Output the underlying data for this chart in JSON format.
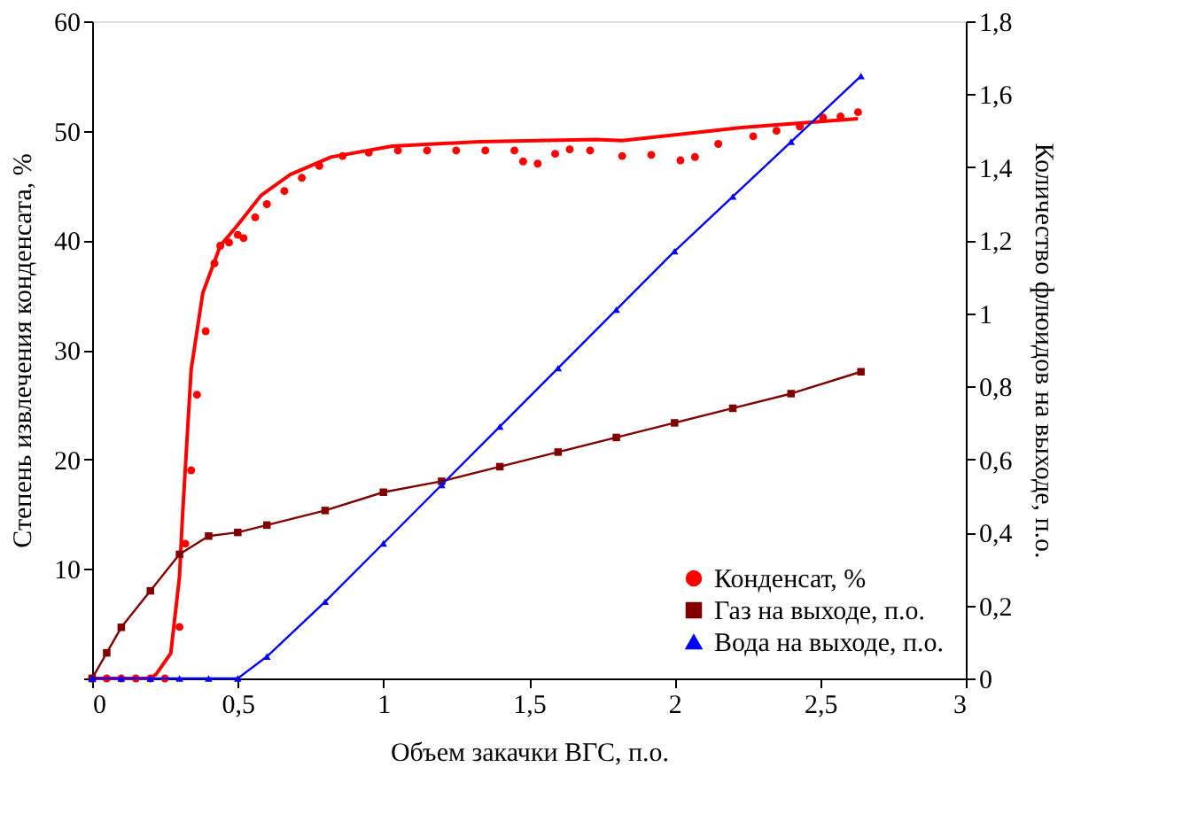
{
  "chart_data": {
    "type": "line",
    "xlabel": "Объем закачки ВГС, п.о.",
    "ylabel": "Степень извлечения конденсата, %",
    "y2label": "Количество флюидов на выходе, п.о.",
    "xlim": [
      0,
      3
    ],
    "xticks": [
      0,
      {
        "value": 0.5,
        "label": "0,5"
      },
      1,
      {
        "value": 1.5,
        "label": "1,5"
      },
      2,
      {
        "value": 2.5,
        "label": "2,5"
      },
      3
    ],
    "ylim": [
      0,
      60
    ],
    "yticks": [
      {
        "value": 0,
        "label": null
      },
      10,
      20,
      30,
      40,
      50,
      60
    ],
    "y2lim": [
      0,
      1.8
    ],
    "y2ticks": [
      0,
      {
        "value": 0.2,
        "label": "0,2"
      },
      {
        "value": 0.4,
        "label": "0,4"
      },
      {
        "value": 0.6,
        "label": "0,6"
      },
      {
        "value": 0.8,
        "label": "0,8"
      },
      1,
      {
        "value": 1.2,
        "label": "1,2"
      },
      {
        "value": 1.4,
        "label": "1,4"
      },
      {
        "value": 1.6,
        "label": "1,6"
      },
      {
        "value": 1.8,
        "label": "1,8"
      }
    ],
    "grid": false,
    "legend": "bottom right",
    "series": [
      {
        "name": "Конденсат, %",
        "type": "scatter",
        "marker": "circle",
        "color": "#ff0000",
        "x": [
          0,
          0.05,
          0.1,
          0.15,
          0.2,
          0.25,
          0.3,
          0.32,
          0.34,
          0.36,
          0.39,
          0.42,
          0.44,
          0.47,
          0.5,
          0.52,
          0.56,
          0.6,
          0.66,
          0.72,
          0.78,
          0.86,
          0.95,
          1.05,
          1.15,
          1.25,
          1.35,
          1.45,
          1.48,
          1.53,
          1.59,
          1.64,
          1.71,
          1.82,
          1.92,
          2.02,
          2.07,
          2.15,
          2.27,
          2.35,
          2.43,
          2.51,
          2.57,
          2.63
        ],
        "values": [
          0,
          0,
          0,
          0,
          0,
          0,
          4.7,
          12.3,
          19,
          25.9,
          31.7,
          37.9,
          39.5,
          39.8,
          40.5,
          40.2,
          42.1,
          43.3,
          44.5,
          45.7,
          46.8,
          47.7,
          48,
          48.2,
          48.2,
          48.2,
          48.2,
          48.2,
          47.2,
          47,
          47.9,
          48.3,
          48.2,
          47.7,
          47.8,
          47.3,
          47.6,
          48.8,
          49.5,
          50,
          50.4,
          51.2,
          51.3,
          51.7
        ]
      },
      {
        "marker": "none",
        "color": "#ff0000",
        "x": [
          0,
          0.2,
          0.22,
          0.27,
          0.3,
          0.31,
          0.34,
          0.38,
          0.44,
          0.5,
          0.58,
          0.68,
          0.82,
          1.03,
          1.33,
          1.73,
          1.82,
          2.23,
          2.63
        ],
        "values": [
          0,
          0,
          0.4,
          2.3,
          9.3,
          14.7,
          28.2,
          35.2,
          39.5,
          41.4,
          44.1,
          46,
          47.6,
          48.6,
          49,
          49.2,
          49.1,
          50.3,
          51.1
        ]
      },
      {
        "name": "Газ на выходе, п.о.",
        "marker": "square",
        "axis": "y2",
        "color": "#800000",
        "x": [
          0,
          0.05,
          0.1,
          0.2,
          0.3,
          0.4,
          0.5,
          0.6,
          0.8,
          1,
          1.2,
          1.4,
          1.6,
          1.8,
          2,
          2.2,
          2.4,
          2.64
        ],
        "values": [
          0,
          0.07,
          0.14,
          0.24,
          0.34,
          0.39,
          0.4,
          0.42,
          0.46,
          0.51,
          0.54,
          0.58,
          0.62,
          0.66,
          0.7,
          0.74,
          0.78,
          0.84
        ]
      },
      {
        "name": "Вода на выходе, п.о.",
        "marker": "triangle",
        "axis": "y2",
        "color": "#0000ff",
        "x": [
          0,
          0.1,
          0.2,
          0.3,
          0.4,
          0.5,
          0.6,
          0.8,
          1,
          1.2,
          1.4,
          1.6,
          1.8,
          2,
          2.2,
          2.4,
          2.64
        ],
        "values": [
          0,
          0,
          0,
          0,
          0,
          0,
          0.06,
          0.21,
          0.37,
          0.53,
          0.69,
          0.85,
          1.01,
          1.17,
          1.32,
          1.47,
          1.65
        ]
      }
    ]
  }
}
